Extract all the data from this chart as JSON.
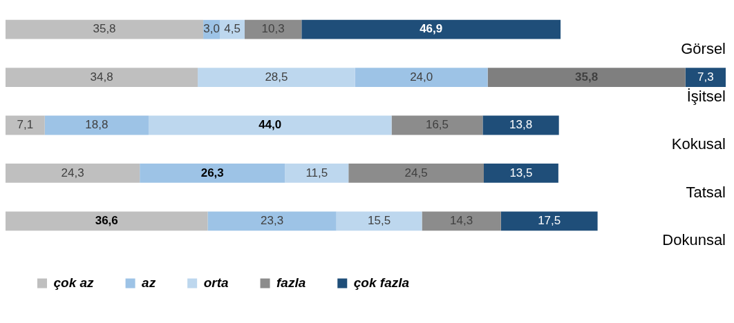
{
  "chart_data": {
    "type": "bar",
    "orientation": "horizontal",
    "stacked": true,
    "legend": "bottom left",
    "tick_labels": false,
    "categories": [
      "Görsel",
      "İşitsel",
      "Kokusal",
      "Tatsal",
      "Dokunsal"
    ],
    "series": [
      {
        "name": "çok az",
        "color": "#bfbfbf",
        "values": [
          35.8,
          34.8,
          7.1,
          24.3,
          36.6
        ],
        "value_labels": [
          "35,8",
          "34,8",
          "7,1",
          "24,3",
          "36,6"
        ]
      },
      {
        "name": "az",
        "color": "#9dc3e6",
        "colors": [
          "#9dc3e6",
          "#bdd7ee",
          "#9dc3e6",
          "#9dc3e6",
          "#9dc3e6"
        ],
        "values": [
          3.0,
          28.5,
          18.8,
          26.3,
          23.3
        ],
        "value_labels": [
          "3,0",
          "28,5",
          "18,8",
          "26,3",
          "23,3"
        ]
      },
      {
        "name": "orta",
        "color": "#bdd7ee",
        "colors": [
          "#bdd7ee",
          "#9dc3e6",
          "#bdd7ee",
          "#bdd7ee",
          "#bdd7ee"
        ],
        "values": [
          4.5,
          24.0,
          44.0,
          11.5,
          15.5
        ],
        "value_labels": [
          "4,5",
          "24,0",
          "44,0",
          "11,5",
          "15,5"
        ]
      },
      {
        "name": "fazla",
        "color": "#8c8c8c",
        "colors": [
          "#8c8c8c",
          "#7f7f7f",
          "#8c8c8c",
          "#8c8c8c",
          "#8c8c8c"
        ],
        "values": [
          10.3,
          35.8,
          16.5,
          24.5,
          14.3
        ],
        "value_labels": [
          "10,3",
          "35,8",
          "16,5",
          "24,5",
          "14,3"
        ]
      },
      {
        "name": "çok fazla",
        "color": "#1f4e79",
        "values": [
          46.9,
          7.3,
          13.8,
          13.5,
          17.5
        ],
        "value_labels": [
          "46,9",
          "7,3",
          "13,8",
          "13,5",
          "17,5"
        ]
      }
    ]
  }
}
